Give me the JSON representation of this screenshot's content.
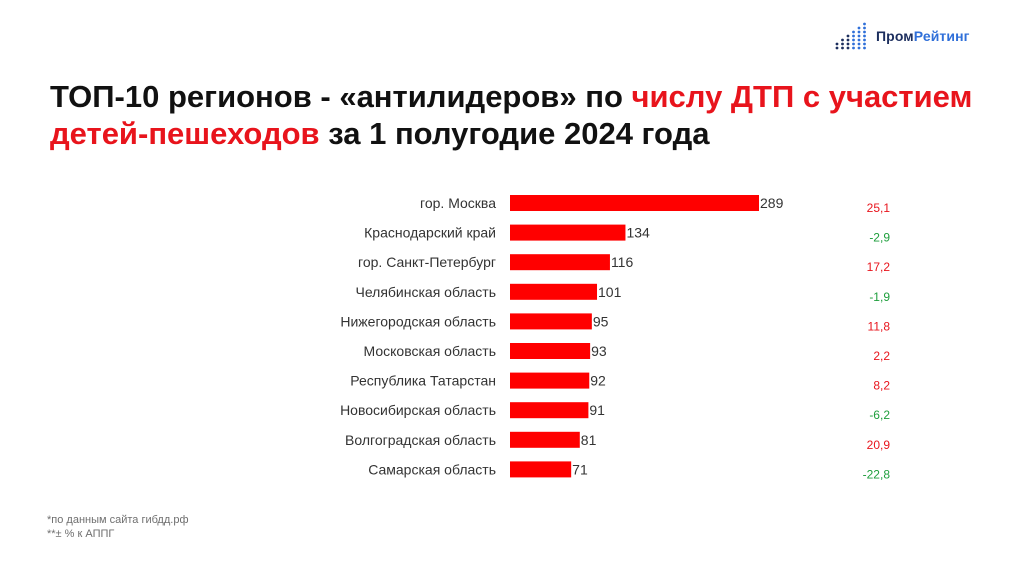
{
  "brand": {
    "name_part1": "Пром",
    "name_part2": "Рейтинг",
    "icon": "dot-matrix-bar-logo-icon",
    "color_dark": "#1c2e5e",
    "color_blue": "#2f6fd9"
  },
  "title": {
    "part1": "ТОП-10 регионов - «антилидеров» по ",
    "highlight1": "числу ДТП с участием детей-пешеходов",
    "part2": " за 1 полугодие 2024 года",
    "highlight_color": "#e8141c"
  },
  "chart_data": {
    "type": "bar",
    "orientation": "horizontal",
    "categories": [
      "гор. Москва",
      "Краснодарский край",
      "гор. Санкт-Петербург",
      "Челябинская область",
      "Нижегородская область",
      "Московская область",
      "Республика Татарстан",
      "Новосибирская область",
      "Волгоградская область",
      "Самарская область"
    ],
    "values": [
      289,
      134,
      116,
      101,
      95,
      93,
      92,
      91,
      81,
      71
    ],
    "change_labels": [
      "25,1",
      "-2,9",
      "17,2",
      "-1,9",
      "11,8",
      "2,2",
      "8,2",
      "-6,2",
      "20,9",
      "-22,8"
    ],
    "change_values": [
      25.1,
      -2.9,
      17.2,
      -1.9,
      11.8,
      2.2,
      8.2,
      -6.2,
      20.9,
      -22.8
    ],
    "bar_color": "#ff0000",
    "positive_change_color": "#e8141c",
    "negative_change_color": "#1e9e3c",
    "xlim": [
      0,
      289
    ],
    "grid": false,
    "legend": "none"
  },
  "footnotes": {
    "source": "*по данным сайта гибдд.рф",
    "change_note": "**± % к АППГ"
  }
}
